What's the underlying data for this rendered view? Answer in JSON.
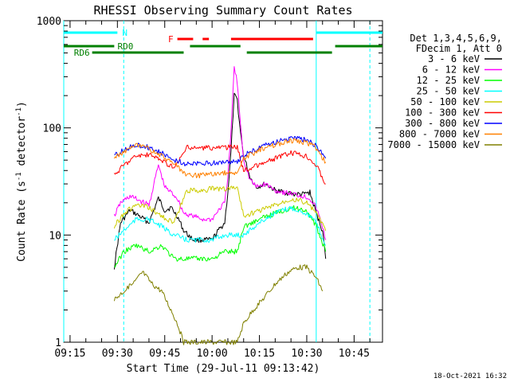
{
  "chart_data": {
    "type": "line",
    "title": "RHESSI Observing Summary Count Rates",
    "xlabel": "Start Time (29-Jul-11 09:13:42)",
    "ylabel_main": "Count Rate (s",
    "ylabel_sup": "-1",
    "ylabel_mid": " detector",
    "ylabel_end": ")",
    "y_scale": "log",
    "xlim": [
      "09:13",
      "10:54"
    ],
    "ylim": [
      1,
      1000
    ],
    "x_ticks": [
      "09:15",
      "09:30",
      "09:45",
      "10:00",
      "10:15",
      "10:30",
      "10:45"
    ],
    "y_ticks": [
      "1",
      "10",
      "100",
      "1000"
    ],
    "legend_header": [
      "Det 1,3,4,5,6,9,",
      "FDecim 1, Att 0"
    ],
    "timestamp": "18-Oct-2021 16:32",
    "flags": [
      {
        "label": "N",
        "color": "#00ffff",
        "row": 0,
        "segments": [
          [
            "09:13",
            "09:30"
          ],
          [
            "10:33",
            "10:54"
          ]
        ]
      },
      {
        "label": "F",
        "color": "#ff0000",
        "row": 1,
        "segments": [
          [
            "09:49",
            "09:54"
          ],
          [
            "09:57",
            "09:59"
          ],
          [
            "10:06",
            "10:32"
          ]
        ]
      },
      {
        "label": "RD0",
        "color": "#008000",
        "row": 2,
        "segments": [
          [
            "09:13",
            "09:29"
          ],
          [
            "09:53",
            "10:09"
          ],
          [
            "10:39",
            "10:54"
          ]
        ]
      },
      {
        "label": "RD6",
        "color": "#008000",
        "row": 3,
        "segments": [
          [
            "09:22",
            "09:51"
          ],
          [
            "10:11",
            "10:38"
          ]
        ]
      }
    ],
    "vlines": [
      {
        "x": "09:13",
        "color": "#00ffff",
        "style": "solid"
      },
      {
        "x": "09:32",
        "color": "#00ffff",
        "style": "dashed"
      },
      {
        "x": "10:33",
        "color": "#00ffff",
        "style": "solid"
      },
      {
        "x": "10:50",
        "color": "#00ffff",
        "style": "dashed"
      }
    ],
    "series": [
      {
        "name": "3 - 6 keV",
        "color": "#000000",
        "points": [
          [
            "09:29",
            5
          ],
          [
            "09:31",
            13
          ],
          [
            "09:34",
            17
          ],
          [
            "09:37",
            15
          ],
          [
            "09:40",
            13
          ],
          [
            "09:43",
            22
          ],
          [
            "09:45",
            17
          ],
          [
            "09:47",
            18
          ],
          [
            "09:49",
            15
          ],
          [
            "09:51",
            11
          ],
          [
            "09:54",
            9
          ],
          [
            "09:57",
            9
          ],
          [
            "10:00",
            9
          ],
          [
            "10:02",
            11
          ],
          [
            "10:04",
            13
          ],
          [
            "10:05",
            25
          ],
          [
            "10:06",
            60
          ],
          [
            "10:07",
            200
          ],
          [
            "10:08",
            180
          ],
          [
            "10:09",
            90
          ],
          [
            "10:10",
            55
          ],
          [
            "10:12",
            35
          ],
          [
            "10:14",
            28
          ],
          [
            "10:17",
            30
          ],
          [
            "10:20",
            26
          ],
          [
            "10:23",
            25
          ],
          [
            "10:26",
            24
          ],
          [
            "10:29",
            24
          ],
          [
            "10:31",
            25
          ],
          [
            "10:33",
            16
          ],
          [
            "10:35",
            11
          ],
          [
            "10:36",
            6
          ]
        ]
      },
      {
        "name": "6 - 12 keV",
        "color": "#ff00ff",
        "points": [
          [
            "09:29",
            15
          ],
          [
            "09:31",
            20
          ],
          [
            "09:34",
            23
          ],
          [
            "09:37",
            21
          ],
          [
            "09:40",
            19
          ],
          [
            "09:43",
            45
          ],
          [
            "09:45",
            28
          ],
          [
            "09:47",
            25
          ],
          [
            "09:49",
            22
          ],
          [
            "09:51",
            16
          ],
          [
            "09:54",
            15
          ],
          [
            "09:57",
            14
          ],
          [
            "10:00",
            14
          ],
          [
            "10:02",
            17
          ],
          [
            "10:04",
            20
          ],
          [
            "10:05",
            35
          ],
          [
            "10:06",
            90
          ],
          [
            "10:07",
            370
          ],
          [
            "10:08",
            260
          ],
          [
            "10:09",
            110
          ],
          [
            "10:10",
            50
          ],
          [
            "10:12",
            33
          ],
          [
            "10:14",
            28
          ],
          [
            "10:17",
            30
          ],
          [
            "10:20",
            26
          ],
          [
            "10:23",
            25
          ],
          [
            "10:26",
            24
          ],
          [
            "10:29",
            23
          ],
          [
            "10:31",
            22
          ],
          [
            "10:33",
            18
          ],
          [
            "10:35",
            12
          ],
          [
            "10:36",
            9
          ]
        ]
      },
      {
        "name": "12 - 25 keV",
        "color": "#00ff00",
        "points": [
          [
            "09:29",
            5
          ],
          [
            "09:32",
            7
          ],
          [
            "09:36",
            8
          ],
          [
            "09:40",
            7
          ],
          [
            "09:44",
            8
          ],
          [
            "09:48",
            6
          ],
          [
            "09:52",
            6
          ],
          [
            "09:56",
            6
          ],
          [
            "10:00",
            6
          ],
          [
            "10:04",
            7
          ],
          [
            "10:08",
            7
          ],
          [
            "10:10",
            12
          ],
          [
            "10:15",
            14
          ],
          [
            "10:20",
            16
          ],
          [
            "10:25",
            18
          ],
          [
            "10:30",
            17
          ],
          [
            "10:33",
            12
          ],
          [
            "10:36",
            7
          ]
        ]
      },
      {
        "name": "25 - 50 keV",
        "color": "#00ffff",
        "points": [
          [
            "09:29",
            9
          ],
          [
            "09:32",
            11
          ],
          [
            "09:36",
            14
          ],
          [
            "09:40",
            14
          ],
          [
            "09:44",
            12
          ],
          [
            "09:48",
            10
          ],
          [
            "09:52",
            9
          ],
          [
            "09:56",
            9
          ],
          [
            "10:00",
            9
          ],
          [
            "10:04",
            10
          ],
          [
            "10:08",
            10
          ],
          [
            "10:10",
            10
          ],
          [
            "10:15",
            13
          ],
          [
            "10:20",
            16
          ],
          [
            "10:25",
            18
          ],
          [
            "10:30",
            16
          ],
          [
            "10:33",
            13
          ],
          [
            "10:36",
            8
          ]
        ]
      },
      {
        "name": "50 - 100 keV",
        "color": "#cccc00",
        "points": [
          [
            "09:29",
            12
          ],
          [
            "09:32",
            16
          ],
          [
            "09:36",
            19
          ],
          [
            "09:40",
            18
          ],
          [
            "09:44",
            15
          ],
          [
            "09:48",
            13
          ],
          [
            "09:52",
            26
          ],
          [
            "09:56",
            26
          ],
          [
            "10:00",
            27
          ],
          [
            "10:04",
            27
          ],
          [
            "10:08",
            28
          ],
          [
            "10:10",
            15
          ],
          [
            "10:15",
            17
          ],
          [
            "10:20",
            19
          ],
          [
            "10:25",
            22
          ],
          [
            "10:30",
            20
          ],
          [
            "10:33",
            16
          ],
          [
            "10:36",
            11
          ]
        ]
      },
      {
        "name": "100 - 300 keV",
        "color": "#ff0000",
        "points": [
          [
            "09:29",
            36
          ],
          [
            "09:32",
            45
          ],
          [
            "09:36",
            55
          ],
          [
            "09:40",
            56
          ],
          [
            "09:44",
            50
          ],
          [
            "09:48",
            42
          ],
          [
            "09:52",
            65
          ],
          [
            "09:56",
            65
          ],
          [
            "10:00",
            65
          ],
          [
            "10:04",
            66
          ],
          [
            "10:08",
            66
          ],
          [
            "10:10",
            40
          ],
          [
            "10:15",
            45
          ],
          [
            "10:20",
            52
          ],
          [
            "10:25",
            58
          ],
          [
            "10:30",
            55
          ],
          [
            "10:33",
            45
          ],
          [
            "10:36",
            30
          ]
        ]
      },
      {
        "name": "300 - 800 keV",
        "color": "#0000ff",
        "points": [
          [
            "09:29",
            55
          ],
          [
            "09:32",
            62
          ],
          [
            "09:36",
            70
          ],
          [
            "09:40",
            66
          ],
          [
            "09:44",
            58
          ],
          [
            "09:48",
            50
          ],
          [
            "09:52",
            46
          ],
          [
            "09:56",
            46
          ],
          [
            "10:00",
            47
          ],
          [
            "10:04",
            48
          ],
          [
            "10:08",
            48
          ],
          [
            "10:10",
            55
          ],
          [
            "10:15",
            65
          ],
          [
            "10:20",
            74
          ],
          [
            "10:25",
            80
          ],
          [
            "10:30",
            77
          ],
          [
            "10:33",
            68
          ],
          [
            "10:36",
            52
          ]
        ]
      },
      {
        "name": "800 - 7000 keV",
        "color": "#ff8000",
        "points": [
          [
            "09:29",
            52
          ],
          [
            "09:32",
            60
          ],
          [
            "09:36",
            68
          ],
          [
            "09:40",
            64
          ],
          [
            "09:44",
            55
          ],
          [
            "09:48",
            46
          ],
          [
            "09:52",
            36
          ],
          [
            "09:56",
            36
          ],
          [
            "10:00",
            37
          ],
          [
            "10:04",
            38
          ],
          [
            "10:08",
            38
          ],
          [
            "10:10",
            52
          ],
          [
            "10:15",
            62
          ],
          [
            "10:20",
            70
          ],
          [
            "10:25",
            76
          ],
          [
            "10:30",
            73
          ],
          [
            "10:33",
            65
          ],
          [
            "10:36",
            48
          ]
        ]
      },
      {
        "name": "7000 - 15000 keV",
        "color": "#808000",
        "points": [
          [
            "09:29",
            2.5
          ],
          [
            "09:32",
            3
          ],
          [
            "09:35",
            3.5
          ],
          [
            "09:38",
            4.5
          ],
          [
            "09:41",
            3.5
          ],
          [
            "09:44",
            3
          ],
          [
            "09:47",
            2
          ],
          [
            "09:49",
            1.5
          ],
          [
            "09:51",
            1
          ],
          [
            "10:08",
            1
          ],
          [
            "10:10",
            1.5
          ],
          [
            "10:13",
            2
          ],
          [
            "10:16",
            2.5
          ],
          [
            "10:20",
            3.5
          ],
          [
            "10:24",
            4.5
          ],
          [
            "10:27",
            5
          ],
          [
            "10:30",
            5
          ],
          [
            "10:33",
            4
          ],
          [
            "10:35",
            3
          ]
        ]
      }
    ]
  }
}
